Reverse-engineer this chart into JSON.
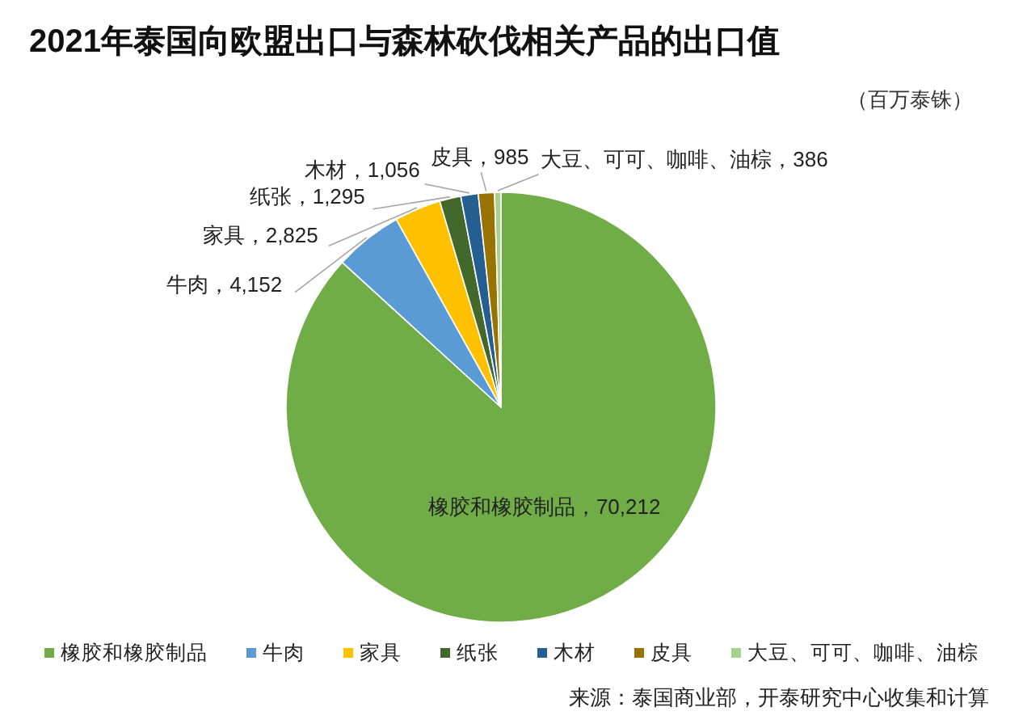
{
  "chart_data": {
    "type": "pie",
    "title": "2021年泰国向欧盟出口与森林砍伐相关产品的出口值",
    "subtitle": "（百万泰铢）",
    "categories": [
      "橡胶和橡胶制品",
      "牛肉",
      "家具",
      "纸张",
      "木材",
      "皮具",
      "大豆、可可、咖啡、油棕"
    ],
    "values": [
      70212,
      4152,
      2825,
      1295,
      1056,
      985,
      386
    ],
    "colors": [
      "#70ad47",
      "#5b9bd5",
      "#ffc000",
      "#43682b",
      "#255e91",
      "#997300",
      "#a9d18e"
    ],
    "value_labels": [
      "，70,212",
      "，4,152",
      "，2,825",
      "，1,295",
      "，1,056",
      "，985",
      "，386"
    ],
    "legend": "bottom",
    "annotations": [
      "来源：泰国商业部，开泰研究中心收集和计算"
    ]
  }
}
